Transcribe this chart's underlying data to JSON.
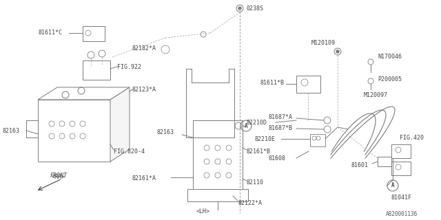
{
  "bg_color": "#ffffff",
  "line_color": "#7a7a7a",
  "text_color": "#444444",
  "diagram_id": "A820001136",
  "fig_w": 6.4,
  "fig_h": 3.2,
  "dpi": 100,
  "xlim": [
    0,
    640
  ],
  "ylim": [
    0,
    320
  ]
}
